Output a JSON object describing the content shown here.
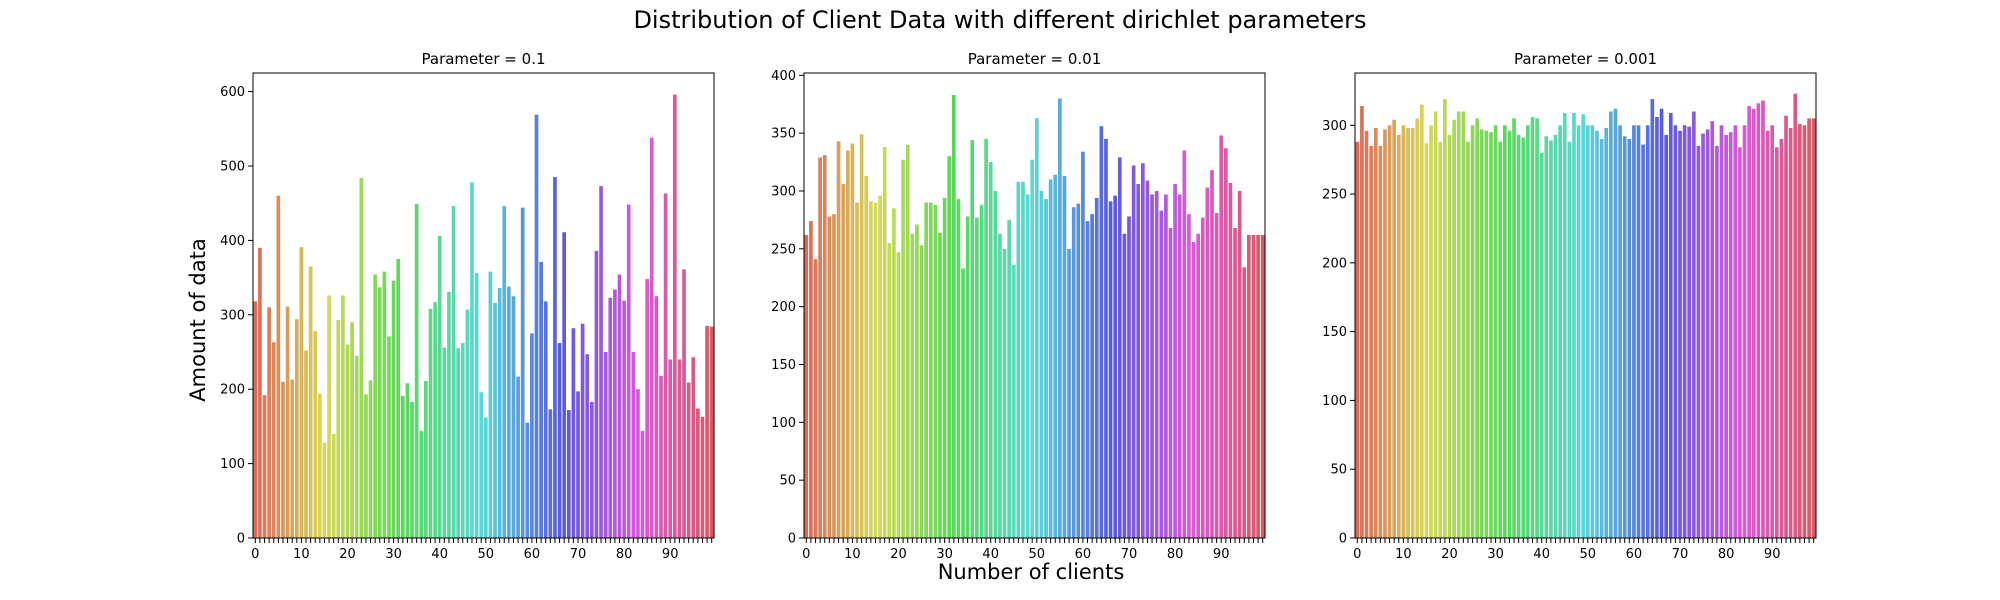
{
  "figure": {
    "title": "Distribution of Client Data with different dirichlet parameters",
    "xlabel": "Number of clients",
    "ylabel": "Amount of data"
  },
  "chart_data": [
    {
      "type": "bar",
      "title": "Parameter = 0.1",
      "xlabel": "Number of clients",
      "ylabel": "Amount of data",
      "ylim": [
        0,
        625
      ],
      "yticks": [
        0,
        100,
        200,
        300,
        400,
        500,
        600
      ],
      "xticks": [
        0,
        10,
        20,
        30,
        40,
        50,
        60,
        70,
        80,
        90
      ],
      "grid": false,
      "x": [
        0,
        1,
        2,
        3,
        4,
        5,
        6,
        7,
        8,
        9,
        10,
        11,
        12,
        13,
        14,
        15,
        16,
        17,
        18,
        19,
        20,
        21,
        22,
        23,
        24,
        25,
        26,
        27,
        28,
        29,
        30,
        31,
        32,
        33,
        34,
        35,
        36,
        37,
        38,
        39,
        40,
        41,
        42,
        43,
        44,
        45,
        46,
        47,
        48,
        49,
        50,
        51,
        52,
        53,
        54,
        55,
        56,
        57,
        58,
        59,
        60,
        61,
        62,
        63,
        64,
        65,
        66,
        67,
        68,
        69,
        70,
        71,
        72,
        73,
        74,
        75,
        76,
        77,
        78,
        79,
        80,
        81,
        82,
        83,
        84,
        85,
        86,
        87,
        88,
        89,
        90,
        91,
        92,
        93,
        94,
        95,
        96,
        97,
        98,
        99
      ],
      "values": [
        318,
        390,
        192,
        310,
        263,
        460,
        210,
        311,
        213,
        294,
        391,
        252,
        365,
        278,
        194,
        128,
        326,
        140,
        293,
        326,
        260,
        290,
        245,
        484,
        193,
        212,
        354,
        337,
        358,
        271,
        346,
        375,
        191,
        208,
        183,
        449,
        144,
        211,
        308,
        317,
        406,
        256,
        331,
        446,
        255,
        262,
        307,
        478,
        356,
        196,
        162,
        358,
        316,
        336,
        446,
        338,
        325,
        217,
        444,
        155,
        275,
        569,
        371,
        318,
        173,
        485,
        262,
        411,
        172,
        282,
        197,
        288,
        247,
        183,
        386,
        473,
        250,
        323,
        334,
        354,
        319,
        448,
        250,
        200,
        144,
        348,
        538,
        325,
        218,
        463,
        240,
        596,
        240,
        361,
        209,
        243,
        174,
        163,
        285,
        284
      ]
    },
    {
      "type": "bar",
      "title": "Parameter = 0.01",
      "xlabel": "Number of clients",
      "ylabel": "",
      "ylim": [
        0,
        402
      ],
      "yticks": [
        0,
        50,
        100,
        150,
        200,
        250,
        300,
        350,
        400
      ],
      "xticks": [
        0,
        10,
        20,
        30,
        40,
        50,
        60,
        70,
        80,
        90
      ],
      "grid": false,
      "x": [
        0,
        1,
        2,
        3,
        4,
        5,
        6,
        7,
        8,
        9,
        10,
        11,
        12,
        13,
        14,
        15,
        16,
        17,
        18,
        19,
        20,
        21,
        22,
        23,
        24,
        25,
        26,
        27,
        28,
        29,
        30,
        31,
        32,
        33,
        34,
        35,
        36,
        37,
        38,
        39,
        40,
        41,
        42,
        43,
        44,
        45,
        46,
        47,
        48,
        49,
        50,
        51,
        52,
        53,
        54,
        55,
        56,
        57,
        58,
        59,
        60,
        61,
        62,
        63,
        64,
        65,
        66,
        67,
        68,
        69,
        70,
        71,
        72,
        73,
        74,
        75,
        76,
        77,
        78,
        79,
        80,
        81,
        82,
        83,
        84,
        85,
        86,
        87,
        88,
        89,
        90,
        91,
        92,
        93,
        94,
        95,
        96,
        97,
        98,
        99
      ],
      "values": [
        262,
        274,
        241,
        329,
        331,
        278,
        280,
        343,
        306,
        335,
        341,
        290,
        349,
        313,
        291,
        290,
        296,
        338,
        255,
        285,
        247,
        327,
        340,
        263,
        271,
        253,
        290,
        290,
        288,
        264,
        294,
        330,
        383,
        293,
        233,
        278,
        344,
        277,
        288,
        345,
        325,
        300,
        263,
        250,
        275,
        236,
        308,
        308,
        297,
        327,
        363,
        300,
        293,
        310,
        314,
        380,
        313,
        250,
        286,
        289,
        334,
        274,
        280,
        294,
        356,
        345,
        291,
        296,
        329,
        263,
        278,
        322,
        306,
        324,
        309,
        297,
        300,
        283,
        297,
        268,
        306,
        297,
        335,
        280,
        256,
        263,
        277,
        303,
        318,
        281,
        348,
        337,
        307,
        268,
        300,
        234,
        262,
        262,
        262,
        262
      ]
    },
    {
      "type": "bar",
      "title": "Parameter = 0.001",
      "xlabel": "Number of clients",
      "ylabel": "",
      "ylim": [
        0,
        338
      ],
      "yticks": [
        0,
        50,
        100,
        150,
        200,
        250,
        300
      ],
      "xticks": [
        0,
        10,
        20,
        30,
        40,
        50,
        60,
        70,
        80,
        90
      ],
      "grid": false,
      "x": [
        0,
        1,
        2,
        3,
        4,
        5,
        6,
        7,
        8,
        9,
        10,
        11,
        12,
        13,
        14,
        15,
        16,
        17,
        18,
        19,
        20,
        21,
        22,
        23,
        24,
        25,
        26,
        27,
        28,
        29,
        30,
        31,
        32,
        33,
        34,
        35,
        36,
        37,
        38,
        39,
        40,
        41,
        42,
        43,
        44,
        45,
        46,
        47,
        48,
        49,
        50,
        51,
        52,
        53,
        54,
        55,
        56,
        57,
        58,
        59,
        60,
        61,
        62,
        63,
        64,
        65,
        66,
        67,
        68,
        69,
        70,
        71,
        72,
        73,
        74,
        75,
        76,
        77,
        78,
        79,
        80,
        81,
        82,
        83,
        84,
        85,
        86,
        87,
        88,
        89,
        90,
        91,
        92,
        93,
        94,
        95,
        96,
        97,
        98,
        99
      ],
      "values": [
        288,
        314,
        296,
        285,
        298,
        285,
        297,
        300,
        304,
        293,
        300,
        298,
        298,
        305,
        315,
        287,
        300,
        310,
        288,
        319,
        293,
        304,
        310,
        310,
        288,
        300,
        305,
        297,
        296,
        295,
        300,
        288,
        300,
        296,
        305,
        293,
        291,
        300,
        306,
        305,
        280,
        292,
        289,
        293,
        300,
        309,
        288,
        309,
        300,
        308,
        300,
        300,
        296,
        290,
        298,
        310,
        312,
        300,
        292,
        290,
        300,
        300,
        286,
        300,
        319,
        306,
        312,
        293,
        309,
        300,
        296,
        300,
        299,
        310,
        285,
        294,
        297,
        303,
        285,
        300,
        293,
        295,
        300,
        284,
        300,
        314,
        312,
        316,
        318,
        296,
        300,
        284,
        290,
        307,
        298,
        323,
        301,
        300,
        305,
        305
      ]
    }
  ]
}
